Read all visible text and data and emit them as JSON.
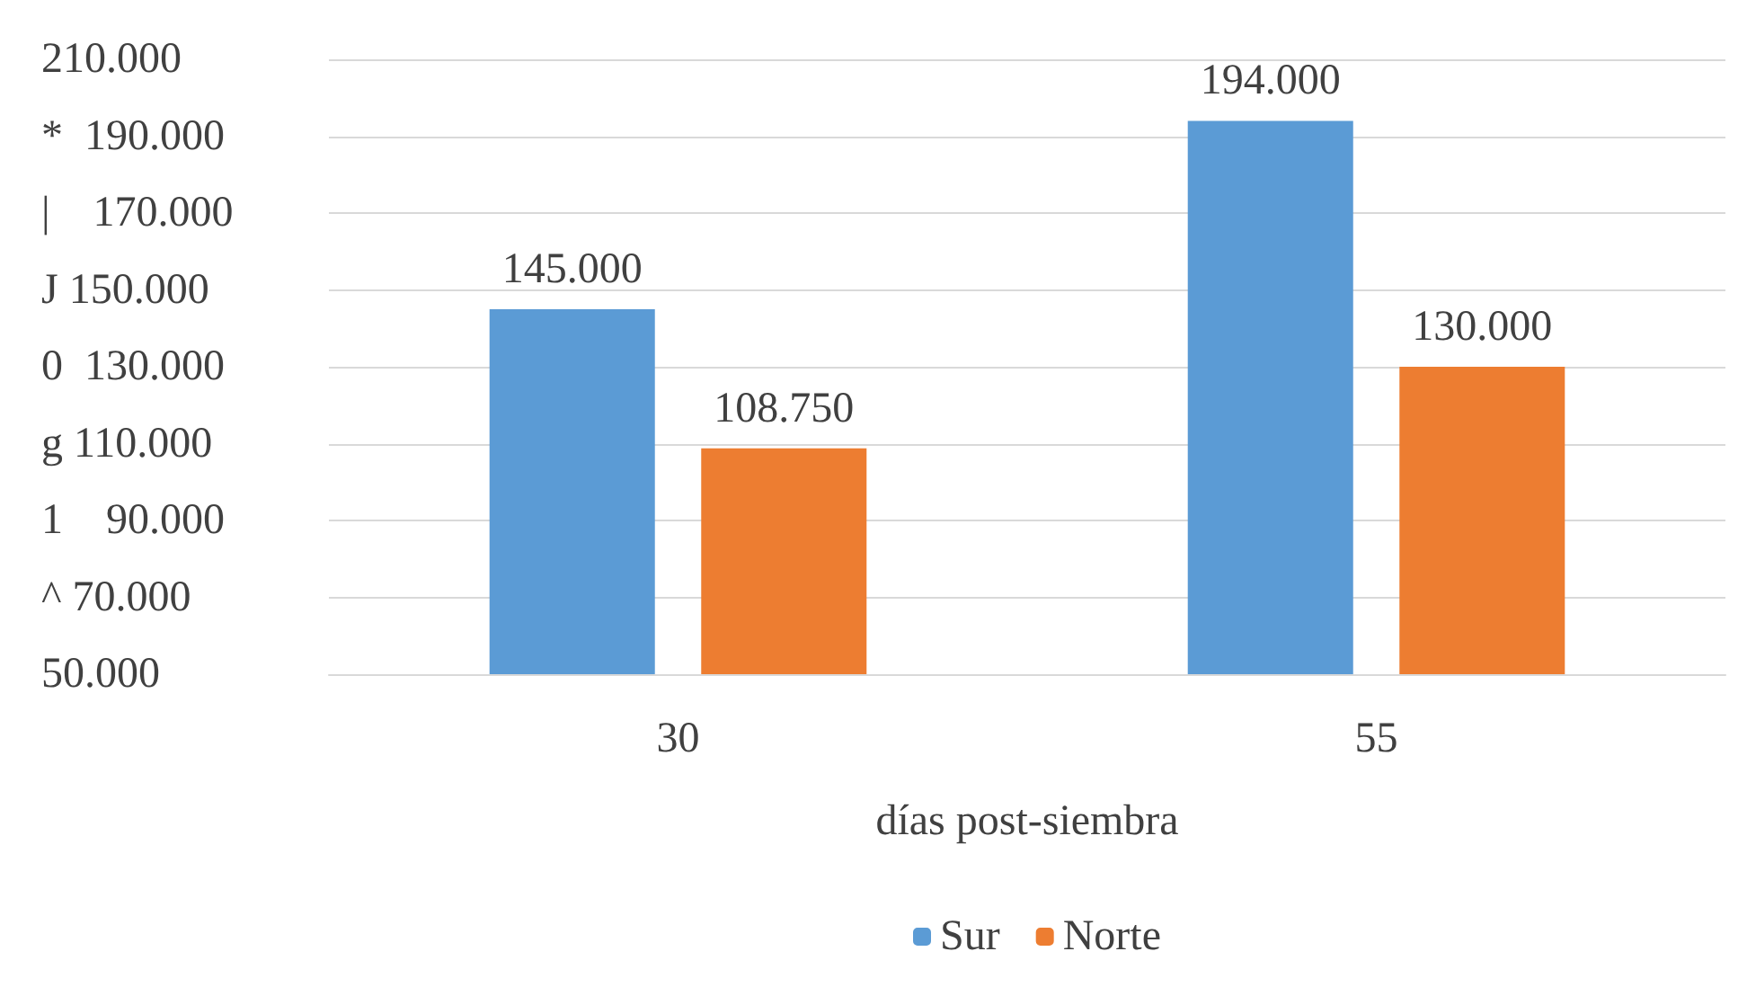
{
  "chart_data": {
    "type": "bar",
    "xlabel": "días post-siembra",
    "categories": [
      "30",
      "55"
    ],
    "series": [
      {
        "name": "Sur",
        "color": "#5b9bd5",
        "values": [
          145,
          194
        ],
        "value_labels": [
          "145.000",
          "194.000"
        ]
      },
      {
        "name": "Norte",
        "color": "#ed7d31",
        "values": [
          108.75,
          130
        ],
        "value_labels": [
          "108.750",
          "130.000"
        ]
      }
    ],
    "ylim": [
      50,
      210
    ],
    "yticks": [
      {
        "value": 50,
        "label": "50.000"
      },
      {
        "value": 70,
        "label": "^ 70.000"
      },
      {
        "value": 90,
        "label": "1    90.000"
      },
      {
        "value": 110,
        "label": "g 110.000"
      },
      {
        "value": 130,
        "label": "0  130.000"
      },
      {
        "value": 150,
        "label": "J 150.000"
      },
      {
        "value": 170,
        "label": "|    170.000"
      },
      {
        "value": 190,
        "label": "*  190.000"
      },
      {
        "value": 210,
        "label": "210.000"
      }
    ],
    "grid": "y",
    "legend": "bottom"
  }
}
